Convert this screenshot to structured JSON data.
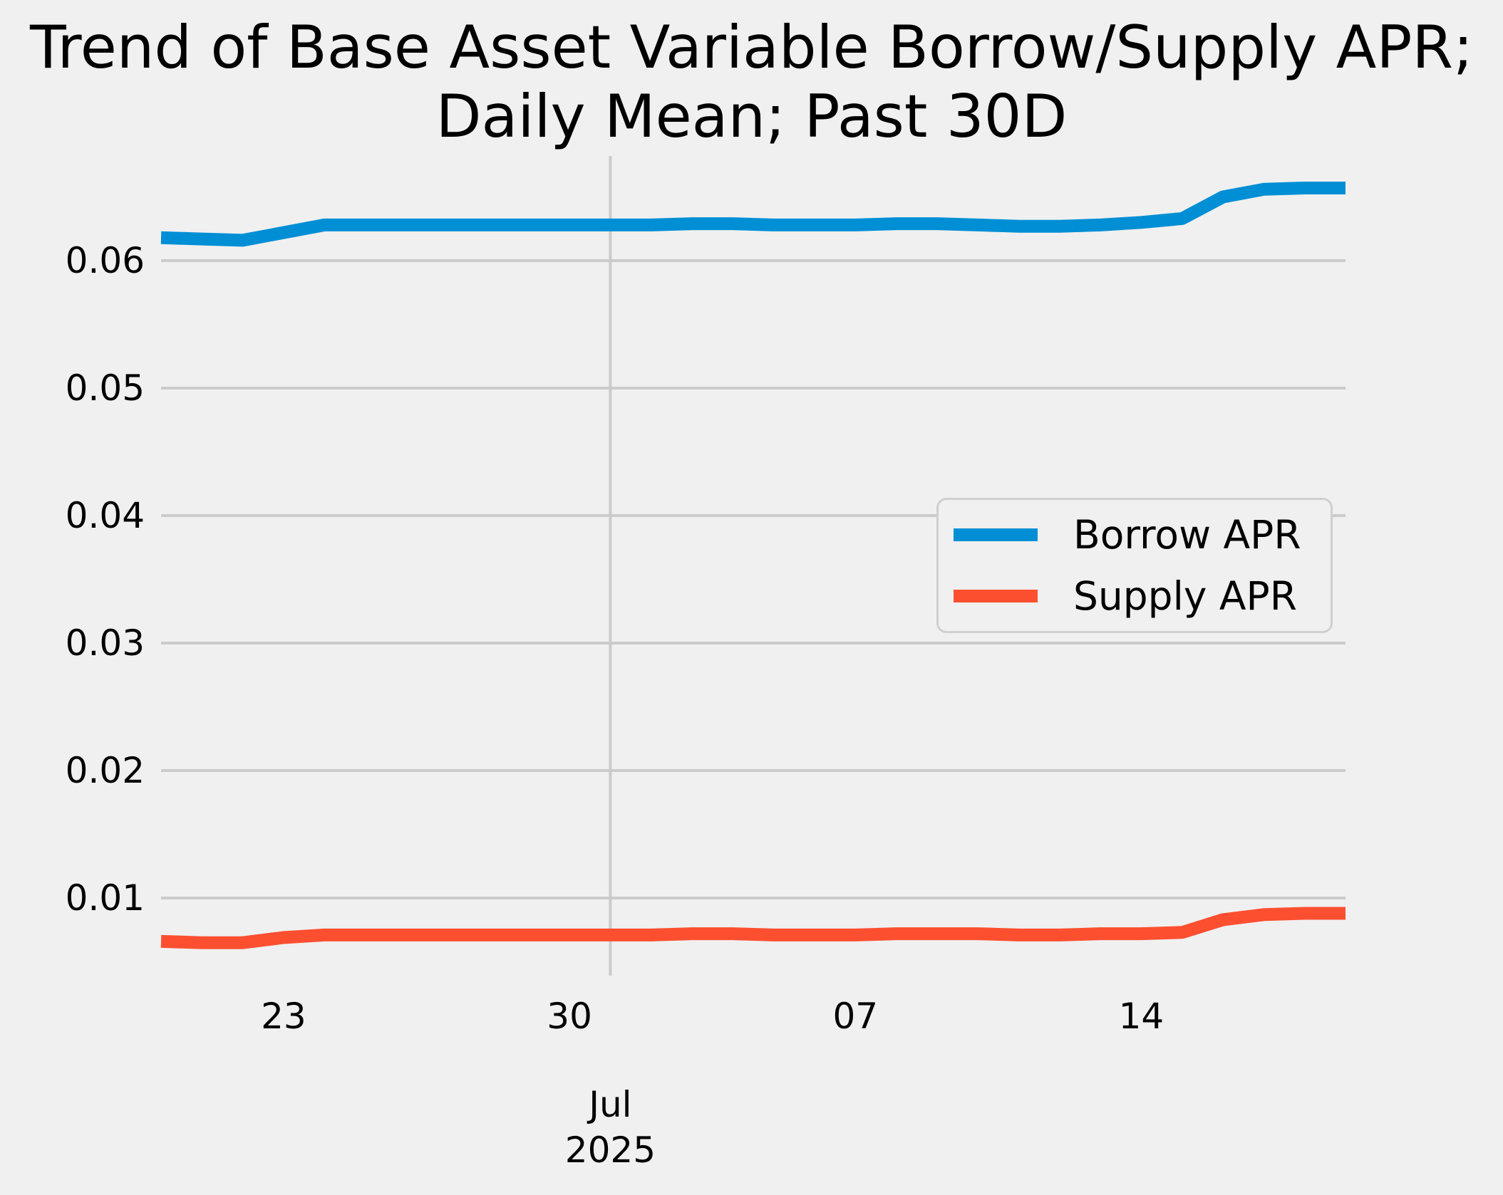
{
  "figure": {
    "title_line1": "Trend of Base Asset Variable Borrow/Supply APR;",
    "title_line2": "Daily Mean; Past 30D",
    "background_color": "#f0f0f0"
  },
  "legend": {
    "items": [
      {
        "label": "Borrow APR",
        "color": "#008fd5"
      },
      {
        "label": "Supply APR",
        "color": "#fc4f30"
      }
    ]
  },
  "axes": {
    "y_ticks": [
      {
        "label": "0.06",
        "value": 0.06
      },
      {
        "label": "0.05",
        "value": 0.05
      },
      {
        "label": "0.04",
        "value": 0.04
      },
      {
        "label": "0.03",
        "value": 0.03
      },
      {
        "label": "0.02",
        "value": 0.02
      },
      {
        "label": "0.01",
        "value": 0.01
      }
    ],
    "x_ticks": [
      {
        "label": "23",
        "day_index": 3
      },
      {
        "label": "30",
        "day_index": 10
      },
      {
        "label": "07",
        "day_index": 17
      },
      {
        "label": "14",
        "day_index": 24
      }
    ],
    "x_month_tick": {
      "line1": "Jul",
      "line2": "2025",
      "day_index": 11
    }
  },
  "chart_data": {
    "type": "line",
    "title": "Trend of Base Asset Variable Borrow/Supply APR; Daily Mean; Past 30D",
    "xlabel": "",
    "ylabel": "",
    "grid": true,
    "gridline_color": "#cbcbcb",
    "background": "#f0f0f0",
    "legend_position": "center right",
    "ylim": [
      0.0039,
      0.0682
    ],
    "x": [
      "2025-06-20",
      "2025-06-21",
      "2025-06-22",
      "2025-06-23",
      "2025-06-24",
      "2025-06-25",
      "2025-06-26",
      "2025-06-27",
      "2025-06-28",
      "2025-06-29",
      "2025-06-30",
      "2025-07-01",
      "2025-07-02",
      "2025-07-03",
      "2025-07-04",
      "2025-07-05",
      "2025-07-06",
      "2025-07-07",
      "2025-07-08",
      "2025-07-09",
      "2025-07-10",
      "2025-07-11",
      "2025-07-12",
      "2025-07-13",
      "2025-07-14",
      "2025-07-15",
      "2025-07-16",
      "2025-07-17",
      "2025-07-18",
      "2025-07-19"
    ],
    "series": [
      {
        "name": "Borrow APR",
        "color": "#008fd5",
        "values": [
          0.0618,
          0.0617,
          0.0616,
          0.0622,
          0.0628,
          0.0628,
          0.0628,
          0.0628,
          0.0628,
          0.0628,
          0.0628,
          0.0628,
          0.0628,
          0.0629,
          0.0629,
          0.0628,
          0.0628,
          0.0628,
          0.0629,
          0.0629,
          0.0628,
          0.0627,
          0.0627,
          0.0628,
          0.063,
          0.0633,
          0.065,
          0.0656,
          0.0657,
          0.0657
        ]
      },
      {
        "name": "Supply APR",
        "color": "#fc4f30",
        "values": [
          0.0066,
          0.0065,
          0.0065,
          0.0069,
          0.0071,
          0.0071,
          0.0071,
          0.0071,
          0.0071,
          0.0071,
          0.0071,
          0.0071,
          0.0071,
          0.0072,
          0.0072,
          0.0071,
          0.0071,
          0.0071,
          0.0072,
          0.0072,
          0.0072,
          0.0071,
          0.0071,
          0.0072,
          0.0072,
          0.0073,
          0.0083,
          0.0087,
          0.0088,
          0.0088
        ]
      }
    ]
  }
}
